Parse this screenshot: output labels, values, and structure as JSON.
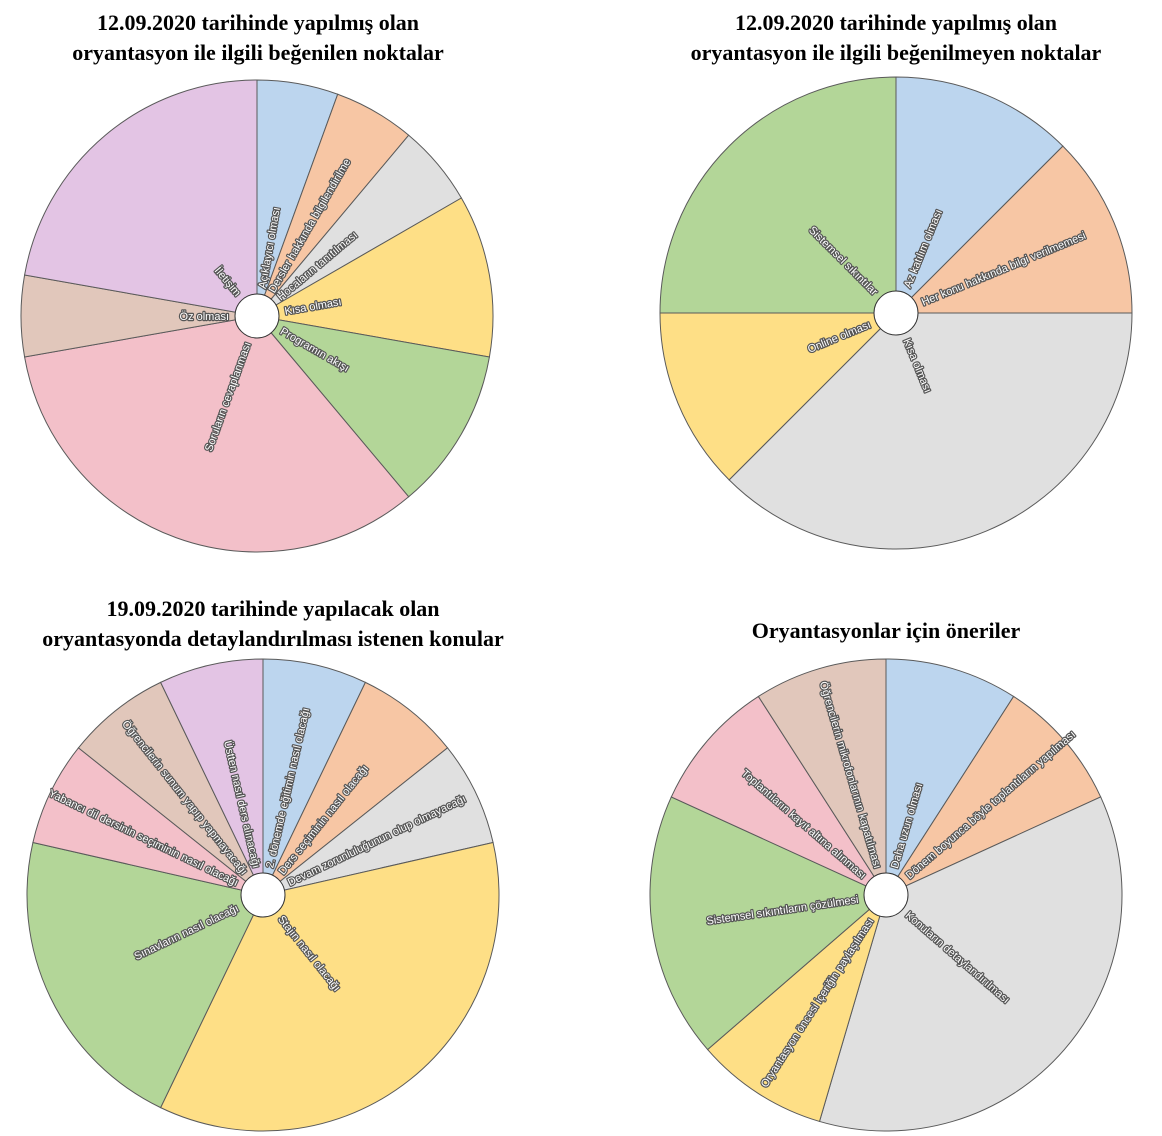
{
  "chart_data": [
    {
      "type": "pie",
      "title": "12.09.2020 tarihinde yapılmış olan oryantasyon ile ilgili beğenilen noktalar",
      "title_lines": [
        "12.09.2020 tarihinde yapılmış olan",
        "oryantasyon ile ilgili beğenilen noktalar"
      ],
      "categories": [
        "Açıklayıcı olması",
        "Dersler hakkında bilgilendirilme",
        "Hocaların tanıtılması",
        "Kısa olması",
        "Programın akışı",
        "Soruların cevaplanması",
        "Öz olması",
        "İletişim"
      ],
      "values": [
        1,
        1,
        1,
        2,
        2,
        6,
        1,
        4
      ],
      "colors": [
        "#bcd5ee",
        "#f7c6a4",
        "#e0e0e0",
        "#fedf86",
        "#b3d698",
        "#f3c0c9",
        "#e1c7bb",
        "#e3c4e4"
      ]
    },
    {
      "type": "pie",
      "title": "12.09.2020 tarihinde yapılmış olan oryantasyon ile ilgili beğenilmeyen noktalar",
      "title_lines": [
        "12.09.2020 tarihinde yapılmış olan",
        "oryantasyon ile ilgili beğenilmeyen noktalar"
      ],
      "categories": [
        "Az katılım olması",
        "Her konu hakkında bilgi verilmemesi",
        "Kısa olması",
        "Online olması",
        "Sistemsel sıkıntılar"
      ],
      "values": [
        1,
        1,
        3,
        1,
        2
      ],
      "colors": [
        "#bcd5ee",
        "#f7c6a4",
        "#e0e0e0",
        "#fedf86",
        "#b3d698"
      ]
    },
    {
      "type": "pie",
      "title": "19.09.2020 tarihinde yapılacak olan oryantasyonda detaylandırılması istenen konular",
      "title_lines": [
        "19.09.2020 tarihinde yapılacak olan",
        "oryantasyonda detaylandırılması istenen konular"
      ],
      "categories": [
        "2. dönemde eğitimin nasıl olacağı",
        "Ders seçiminin nasıl olacağı",
        "Devam zorunluluğunun olup olmayacağı",
        "Stajın nasıl olacağı",
        "Sınavların nasıl olacağı",
        "Yabancı dil dersinin seçiminin nasıl olacağı",
        "Öğrencilerin sunum yapıp yapmayacağı",
        "Üstten nasıl ders alınacağı"
      ],
      "values": [
        1,
        1,
        1,
        5,
        3,
        1,
        1,
        1
      ],
      "colors": [
        "#bcd5ee",
        "#f7c6a4",
        "#e0e0e0",
        "#fedf86",
        "#b3d698",
        "#f3c0c9",
        "#e1c7bb",
        "#e3c4e4"
      ]
    },
    {
      "type": "pie",
      "title": "Oryantasyonlar için öneriler",
      "title_lines": [
        "Oryantasyonlar için öneriler"
      ],
      "categories": [
        "Daha uzun olması",
        "Dönem boyunca böyle toplantıların yapılması",
        "Konuların detaylandırılması",
        "Oryantasyon öncesi içeriğin paylaşılması",
        "Sistemsel sıkıntıların çözülmesi",
        "Toplantıların kayıt altına alınması",
        "Öğrencilerin mikrofonlarının kapatılması"
      ],
      "values": [
        1,
        1,
        4,
        1,
        2,
        1,
        1
      ],
      "colors": [
        "#bcd5ee",
        "#f7c6a4",
        "#e0e0e0",
        "#fedf86",
        "#b3d698",
        "#f3c0c9",
        "#e1c7bb"
      ]
    }
  ]
}
